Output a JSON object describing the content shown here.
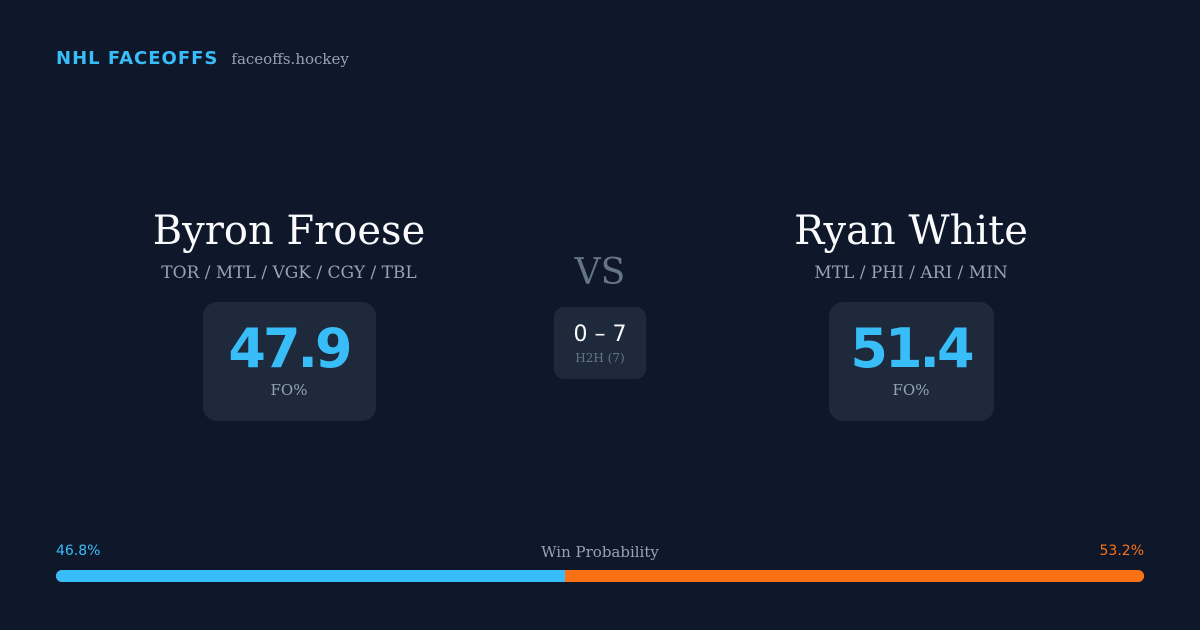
{
  "brand": {
    "name": "NHL FACEOFFS",
    "site": "faceoffs.hockey"
  },
  "player_left": {
    "name": "Byron Froese",
    "teams": "TOR / MTL / VGK / CGY / TBL",
    "fo_pct": "47.9",
    "fo_label": "FO%"
  },
  "player_right": {
    "name": "Ryan White",
    "teams": "MTL / PHI / ARI / MIN",
    "fo_pct": "51.4",
    "fo_label": "FO%"
  },
  "versus": {
    "label": "VS",
    "h2h_score": "0 – 7",
    "h2h_label": "H2H (7)"
  },
  "win_probability": {
    "title": "Win Probability",
    "left_text": "46.8%",
    "right_text": "53.2%",
    "left_value": 46.8,
    "right_value": 53.2,
    "left_color": "#38bdf8",
    "right_color": "#f97316"
  }
}
